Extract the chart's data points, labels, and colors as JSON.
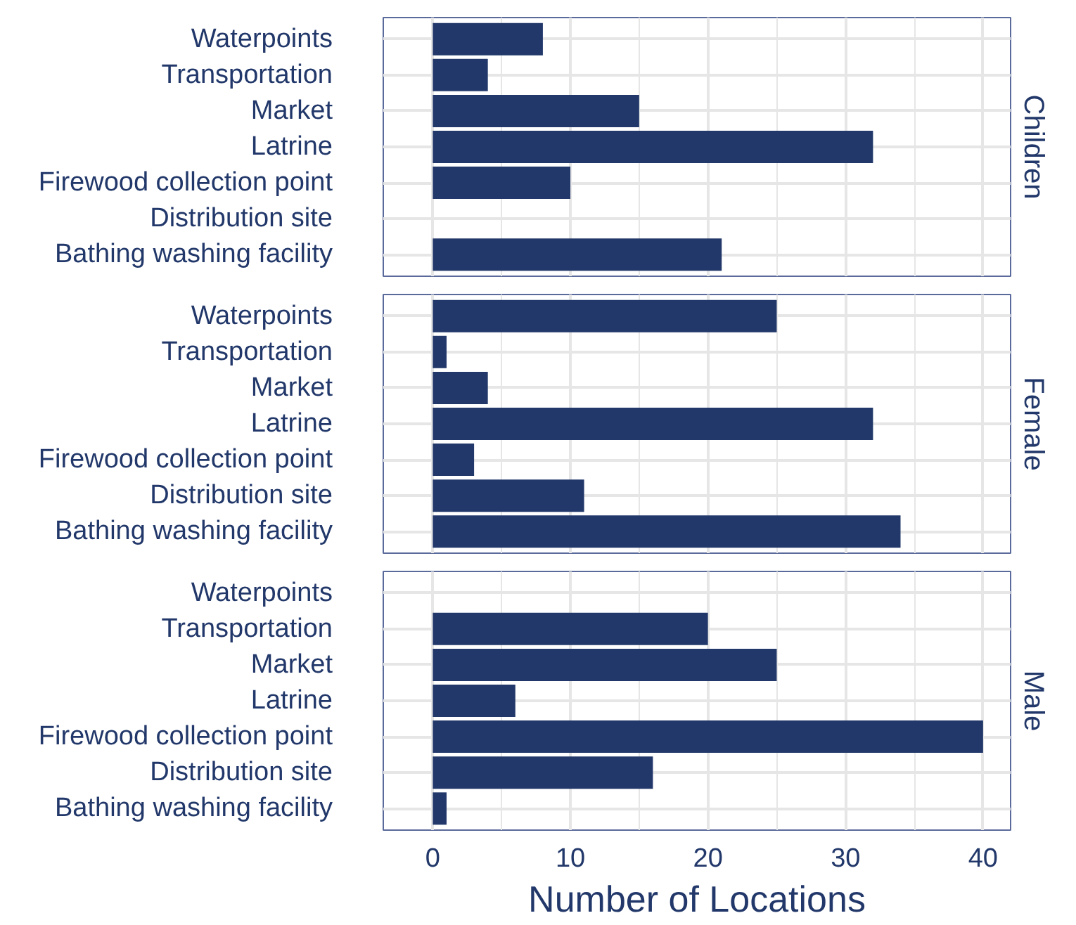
{
  "chart_data": [
    {
      "type": "bar",
      "orientation": "horizontal",
      "title": "Children",
      "categories": [
        "Waterpoints",
        "Transportation",
        "Market",
        "Latrine",
        "Firewood collection point",
        "Distribution site",
        "Bathing washing facility"
      ],
      "values": [
        8,
        4,
        15,
        32,
        10,
        0,
        21
      ],
      "color": "#22386a",
      "xlim": [
        -3.6,
        42
      ],
      "xticks": [
        0,
        10,
        20,
        30,
        40
      ],
      "grid": true,
      "tick_labels": "y"
    },
    {
      "type": "bar",
      "orientation": "horizontal",
      "title": "Female",
      "categories": [
        "Waterpoints",
        "Transportation",
        "Market",
        "Latrine",
        "Firewood collection point",
        "Distribution site",
        "Bathing washing facility"
      ],
      "values": [
        25,
        1,
        4,
        32,
        3,
        11,
        34
      ],
      "color": "#22386a",
      "xlim": [
        -3.6,
        42
      ],
      "xticks": [
        0,
        10,
        20,
        30,
        40
      ],
      "grid": true,
      "tick_labels": "y"
    },
    {
      "type": "bar",
      "orientation": "horizontal",
      "title": "Male",
      "xlabel": "Number of Locations",
      "categories": [
        "Waterpoints",
        "Transportation",
        "Market",
        "Latrine",
        "Firewood collection point",
        "Distribution site",
        "Bathing washing facility"
      ],
      "values": [
        0,
        20,
        25,
        6,
        40,
        16,
        1
      ],
      "color": "#22386a",
      "xlim": [
        -3.6,
        42
      ],
      "xticks": [
        0,
        10,
        20,
        30,
        40
      ],
      "grid": true
    }
  ]
}
